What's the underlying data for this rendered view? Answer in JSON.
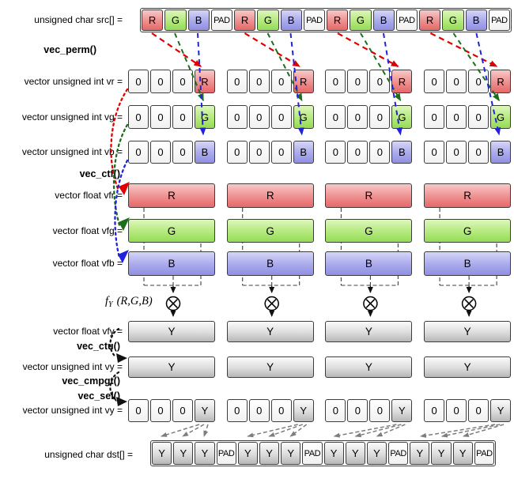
{
  "labels": {
    "src": "unsigned char src[] =",
    "vec_perm": "vec_perm()",
    "vr": "vector unsigned int vr =",
    "vg": "vector unsigned int vg =",
    "vb": "vector unsigned int vb =",
    "vec_ctf": "vec_ctf()",
    "vfr": "vector float vfr =",
    "vfg": "vector float vfg =",
    "vfb": "vector float vfb =",
    "fy_f": "f",
    "fy_sub": "Y",
    "fy_args": "(R,G,B)",
    "vfy": "vector float vfy =",
    "vec_ctu": "vec_ctu()",
    "vy": "vector unsigned int vy =",
    "vec_cmpgt": "vec_cmpgt()",
    "vec_sel": "vec_sel()",
    "vy2": "vector unsigned int vy =",
    "dst": "unsigned char dst[] ="
  },
  "colors": {
    "red": "#e56868",
    "green": "#93dc55",
    "blue": "#9090e4",
    "gray": "#b7b7b7",
    "arrow_red": "#e00000",
    "arrow_green": "#1c6e1c",
    "arrow_blue": "#2222dd",
    "arrow_black": "#111111",
    "arrow_gray": "#7d7d7d",
    "border": "#3d3d3d"
  },
  "rows": {
    "src": {
      "cells": [
        {
          "t": "R",
          "c": "red"
        },
        {
          "t": "G",
          "c": "green"
        },
        {
          "t": "B",
          "c": "blue"
        },
        {
          "t": "PAD",
          "c": "white"
        },
        {
          "t": "R",
          "c": "red"
        },
        {
          "t": "G",
          "c": "green"
        },
        {
          "t": "B",
          "c": "blue"
        },
        {
          "t": "PAD",
          "c": "white"
        },
        {
          "t": "R",
          "c": "red"
        },
        {
          "t": "G",
          "c": "green"
        },
        {
          "t": "B",
          "c": "blue"
        },
        {
          "t": "PAD",
          "c": "white"
        },
        {
          "t": "R",
          "c": "red"
        },
        {
          "t": "G",
          "c": "green"
        },
        {
          "t": "B",
          "c": "blue"
        },
        {
          "t": "PAD",
          "c": "white"
        }
      ]
    },
    "vr": {
      "groups": [
        [
          {
            "t": "0",
            "c": "white"
          },
          {
            "t": "0",
            "c": "white"
          },
          {
            "t": "0",
            "c": "white"
          },
          {
            "t": "R",
            "c": "red"
          }
        ],
        [
          {
            "t": "0",
            "c": "white"
          },
          {
            "t": "0",
            "c": "white"
          },
          {
            "t": "0",
            "c": "white"
          },
          {
            "t": "R",
            "c": "red"
          }
        ],
        [
          {
            "t": "0",
            "c": "white"
          },
          {
            "t": "0",
            "c": "white"
          },
          {
            "t": "0",
            "c": "white"
          },
          {
            "t": "R",
            "c": "red"
          }
        ],
        [
          {
            "t": "0",
            "c": "white"
          },
          {
            "t": "0",
            "c": "white"
          },
          {
            "t": "0",
            "c": "white"
          },
          {
            "t": "R",
            "c": "red"
          }
        ]
      ]
    },
    "vg": {
      "groups": [
        [
          {
            "t": "0",
            "c": "white"
          },
          {
            "t": "0",
            "c": "white"
          },
          {
            "t": "0",
            "c": "white"
          },
          {
            "t": "G",
            "c": "green"
          }
        ],
        [
          {
            "t": "0",
            "c": "white"
          },
          {
            "t": "0",
            "c": "white"
          },
          {
            "t": "0",
            "c": "white"
          },
          {
            "t": "G",
            "c": "green"
          }
        ],
        [
          {
            "t": "0",
            "c": "white"
          },
          {
            "t": "0",
            "c": "white"
          },
          {
            "t": "0",
            "c": "white"
          },
          {
            "t": "G",
            "c": "green"
          }
        ],
        [
          {
            "t": "0",
            "c": "white"
          },
          {
            "t": "0",
            "c": "white"
          },
          {
            "t": "0",
            "c": "white"
          },
          {
            "t": "G",
            "c": "green"
          }
        ]
      ]
    },
    "vb": {
      "groups": [
        [
          {
            "t": "0",
            "c": "white"
          },
          {
            "t": "0",
            "c": "white"
          },
          {
            "t": "0",
            "c": "white"
          },
          {
            "t": "B",
            "c": "blue"
          }
        ],
        [
          {
            "t": "0",
            "c": "white"
          },
          {
            "t": "0",
            "c": "white"
          },
          {
            "t": "0",
            "c": "white"
          },
          {
            "t": "B",
            "c": "blue"
          }
        ],
        [
          {
            "t": "0",
            "c": "white"
          },
          {
            "t": "0",
            "c": "white"
          },
          {
            "t": "0",
            "c": "white"
          },
          {
            "t": "B",
            "c": "blue"
          }
        ],
        [
          {
            "t": "0",
            "c": "white"
          },
          {
            "t": "0",
            "c": "white"
          },
          {
            "t": "0",
            "c": "white"
          },
          {
            "t": "B",
            "c": "blue"
          }
        ]
      ]
    },
    "vfr": {
      "letter": "R",
      "c": "red"
    },
    "vfg": {
      "letter": "G",
      "c": "green"
    },
    "vfb": {
      "letter": "B",
      "c": "blue"
    },
    "vfy": {
      "letter": "Y",
      "c": "gray"
    },
    "vy": {
      "letter": "Y",
      "c": "gray"
    },
    "vy2": {
      "groups": [
        [
          {
            "t": "0",
            "c": "white"
          },
          {
            "t": "0",
            "c": "white"
          },
          {
            "t": "0",
            "c": "white"
          },
          {
            "t": "Y",
            "c": "gray"
          }
        ],
        [
          {
            "t": "0",
            "c": "white"
          },
          {
            "t": "0",
            "c": "white"
          },
          {
            "t": "0",
            "c": "white"
          },
          {
            "t": "Y",
            "c": "gray"
          }
        ],
        [
          {
            "t": "0",
            "c": "white"
          },
          {
            "t": "0",
            "c": "white"
          },
          {
            "t": "0",
            "c": "white"
          },
          {
            "t": "Y",
            "c": "gray"
          }
        ],
        [
          {
            "t": "0",
            "c": "white"
          },
          {
            "t": "0",
            "c": "white"
          },
          {
            "t": "0",
            "c": "white"
          },
          {
            "t": "Y",
            "c": "gray"
          }
        ]
      ]
    },
    "dst": {
      "cells": [
        {
          "t": "Y",
          "c": "gray"
        },
        {
          "t": "Y",
          "c": "gray"
        },
        {
          "t": "Y",
          "c": "gray"
        },
        {
          "t": "PAD",
          "c": "white"
        },
        {
          "t": "Y",
          "c": "gray"
        },
        {
          "t": "Y",
          "c": "gray"
        },
        {
          "t": "Y",
          "c": "gray"
        },
        {
          "t": "PAD",
          "c": "white"
        },
        {
          "t": "Y",
          "c": "gray"
        },
        {
          "t": "Y",
          "c": "gray"
        },
        {
          "t": "Y",
          "c": "gray"
        },
        {
          "t": "PAD",
          "c": "white"
        },
        {
          "t": "Y",
          "c": "gray"
        },
        {
          "t": "Y",
          "c": "gray"
        },
        {
          "t": "Y",
          "c": "gray"
        },
        {
          "t": "PAD",
          "c": "white"
        }
      ]
    }
  }
}
